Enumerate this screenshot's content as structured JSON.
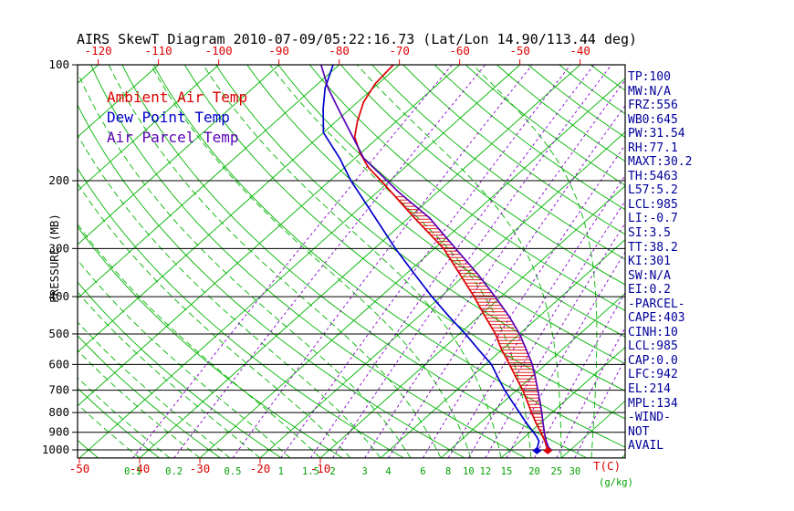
{
  "title": "AIRS SkewT Diagram 2010-07-09/05:22:16.73 (Lat/Lon 14.90/113.44 deg)",
  "legend": {
    "items": [
      {
        "label": "Ambient Air Temp",
        "color_key": "ambient"
      },
      {
        "label": "Dew Point Temp",
        "color_key": "dew"
      },
      {
        "label": "Air Parcel Temp",
        "color_key": "parcel"
      }
    ]
  },
  "colors": {
    "ambient": "#dd0000",
    "dew": "#0000cc",
    "parcel": "#5a00b4",
    "isoline_green": "#00b400",
    "mixing_purple": "#8800cc",
    "axis_red": "#dd0000",
    "mixing_label_green": "#00a000",
    "pressure_black": "#000000",
    "panel_navy": "#000099"
  },
  "axes": {
    "pressure_axis_label": "PRESSURE (MB)",
    "pressure_ticks": [
      100,
      200,
      300,
      400,
      500,
      600,
      700,
      800,
      900,
      1000
    ],
    "top_temp_ticks": [
      -120,
      -110,
      -100,
      -90,
      -80,
      -70,
      -60,
      -50,
      -40
    ],
    "bottom_temp_ticks": [
      -50,
      -40,
      -30,
      -20,
      -10
    ],
    "temp_unit_label": "T(C)",
    "mixing_unit_label": "(g/kg)",
    "mixing_ratio_ticks": [
      0.1,
      0.2,
      0.5,
      1,
      1.5,
      2,
      3,
      4,
      6,
      8,
      10,
      12,
      15,
      20,
      25,
      30
    ]
  },
  "side_panel": {
    "lines": [
      "TP:100",
      "MW:N/A",
      "FRZ:556",
      "WB0:645",
      "PW:31.54",
      "RH:77.1",
      "MAXT:30.2",
      "TH:5463",
      "L57:5.2",
      "LCL:985",
      "LI:-0.7",
      "SI:3.5",
      "TT:38.2",
      "KI:301",
      "SW:N/A",
      "EI:0.2",
      "-PARCEL-",
      "CAPE:403",
      "CINH:10",
      "LCL:985",
      "CAP:0.0",
      "LFC:942",
      "EL:214",
      "MPL:134",
      "-WIND-",
      "NOT",
      "AVAIL"
    ]
  },
  "chart_data": {
    "type": "line",
    "title": "AIRS SkewT Diagram 2010-07-09/05:22:16.73 (Lat/Lon 14.90/113.44 deg)",
    "x_axis": {
      "label": "T(C)",
      "skewed": true,
      "top_range": [
        -120,
        -40
      ],
      "bottom_range": [
        -50,
        40
      ]
    },
    "y_axis": {
      "label": "PRESSURE (MB)",
      "scale": "log",
      "range": [
        100,
        1050
      ]
    },
    "series": [
      {
        "name": "Ambient Air Temp",
        "color_key": "ambient",
        "points_p_mb_t_c": [
          [
            1005,
            26.4
          ],
          [
            1000,
            26.2
          ],
          [
            975,
            25.2
          ],
          [
            950,
            24.2
          ],
          [
            925,
            23.0
          ],
          [
            900,
            21.8
          ],
          [
            850,
            19.2
          ],
          [
            800,
            16.6
          ],
          [
            750,
            13.9
          ],
          [
            700,
            11.0
          ],
          [
            650,
            7.6
          ],
          [
            600,
            4.0
          ],
          [
            550,
            0.0
          ],
          [
            500,
            -4.0
          ],
          [
            450,
            -9.0
          ],
          [
            400,
            -14.5
          ],
          [
            350,
            -21.0
          ],
          [
            300,
            -28.5
          ],
          [
            250,
            -39.0
          ],
          [
            200,
            -51.5
          ],
          [
            185,
            -56.0
          ],
          [
            170,
            -60.0
          ],
          [
            154,
            -64.0
          ],
          [
            140,
            -66.5
          ],
          [
            125,
            -69.0
          ],
          [
            112,
            -70.5
          ],
          [
            100,
            -71.0
          ]
        ]
      },
      {
        "name": "Dew Point Temp",
        "color_key": "dew",
        "points_p_mb_t_c": [
          [
            1005,
            24.6
          ],
          [
            1000,
            24.4
          ],
          [
            975,
            23.8
          ],
          [
            950,
            23.2
          ],
          [
            925,
            22.0
          ],
          [
            900,
            20.6
          ],
          [
            850,
            17.6
          ],
          [
            800,
            14.6
          ],
          [
            750,
            11.4
          ],
          [
            700,
            8.0
          ],
          [
            650,
            4.6
          ],
          [
            600,
            1.0
          ],
          [
            550,
            -3.8
          ],
          [
            500,
            -9.0
          ],
          [
            450,
            -15.0
          ],
          [
            400,
            -21.5
          ],
          [
            350,
            -28.5
          ],
          [
            300,
            -36.5
          ],
          [
            250,
            -45.5
          ],
          [
            200,
            -56.5
          ],
          [
            175,
            -62.5
          ],
          [
            150,
            -70.0
          ],
          [
            130,
            -74.5
          ],
          [
            115,
            -78.0
          ],
          [
            100,
            -81.0
          ]
        ]
      },
      {
        "name": "Air Parcel Temp",
        "color_key": "parcel",
        "points_p_mb_t_c": [
          [
            1005,
            27.0
          ],
          [
            1000,
            26.8
          ],
          [
            985,
            25.9
          ],
          [
            950,
            24.4
          ],
          [
            925,
            23.4
          ],
          [
            900,
            22.4
          ],
          [
            850,
            20.4
          ],
          [
            800,
            18.3
          ],
          [
            750,
            16.0
          ],
          [
            700,
            13.5
          ],
          [
            650,
            10.8
          ],
          [
            600,
            7.8
          ],
          [
            550,
            4.1
          ],
          [
            500,
            0.0
          ],
          [
            450,
            -5.0
          ],
          [
            400,
            -11.0
          ],
          [
            350,
            -18.0
          ],
          [
            300,
            -26.5
          ],
          [
            250,
            -36.5
          ],
          [
            214,
            -46.5
          ],
          [
            200,
            -50.5
          ],
          [
            175,
            -58.5
          ],
          [
            150,
            -65.5
          ],
          [
            130,
            -72.0
          ],
          [
            115,
            -77.5
          ],
          [
            100,
            -83.0
          ]
        ]
      }
    ],
    "background": {
      "isotherms_c": {
        "min": -120,
        "max": 40,
        "step": 10
      },
      "dry_adiabats_theta_c": {
        "min": -50,
        "max": 180,
        "step": 10
      },
      "moist_adiabats_c": {
        "min": -40,
        "max": 35,
        "step": 5
      },
      "mixing_ratio_g_kg": [
        0.1,
        0.2,
        0.5,
        1,
        1.5,
        2,
        3,
        4,
        6,
        8,
        10,
        12,
        15,
        20,
        25,
        30
      ]
    },
    "hatch": {
      "between": [
        "Air Parcel Temp",
        "Ambient Air Temp"
      ],
      "pressure_range": [
        940,
        218
      ],
      "color_key": "ambient"
    }
  }
}
